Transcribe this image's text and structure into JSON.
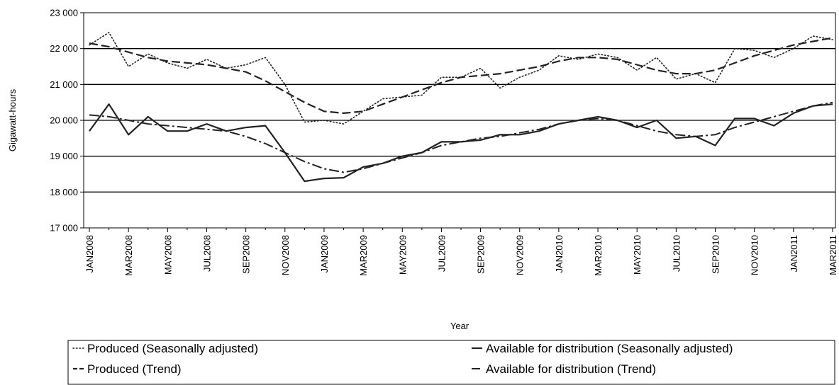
{
  "chart_data": {
    "type": "line",
    "xlabel": "Year",
    "ylabel": "Gigawatt-hours",
    "ylim": [
      17000,
      23000
    ],
    "y_ticks": [
      17000,
      18000,
      19000,
      20000,
      21000,
      22000,
      23000
    ],
    "y_tick_labels": [
      "17 000",
      "18 000",
      "19 000",
      "20 000",
      "21 000",
      "22 000",
      "23 000"
    ],
    "grid": "horizontal",
    "legend_position": "bottom",
    "x": [
      "JAN2008",
      "FEB2008",
      "MAR2008",
      "APR2008",
      "MAY2008",
      "JUN2008",
      "JUL2008",
      "AUG2008",
      "SEP2008",
      "OCT2008",
      "NOV2008",
      "DEC2008",
      "JAN2009",
      "FEB2009",
      "MAR2009",
      "APR2009",
      "MAY2009",
      "JUN2009",
      "JUL2009",
      "AUG2009",
      "SEP2009",
      "OCT2009",
      "NOV2009",
      "DEC2009",
      "JAN2010",
      "FEB2010",
      "MAR2010",
      "APR2010",
      "MAY2010",
      "JUN2010",
      "JUL2010",
      "AUG2010",
      "SEP2010",
      "OCT2010",
      "NOV2010",
      "DEC2010",
      "JAN2011",
      "FEB2011",
      "MAR2011"
    ],
    "x_tick_labels": [
      "JAN2008",
      "MAR2008",
      "MAY2008",
      "JUL2008",
      "SEP2008",
      "NOV2008",
      "JAN2009",
      "MAR2009",
      "MAY2009",
      "JUL2009",
      "SEP2009",
      "NOV2009",
      "JAN2010",
      "MAR2010",
      "MAY2010",
      "JUL2010",
      "SEP2010",
      "NOV2010",
      "JAN2011",
      "MAR2011"
    ],
    "series": [
      {
        "name": "Produced (Seasonally adjusted)",
        "style": "dotted",
        "values": [
          22100,
          22450,
          21500,
          21850,
          21600,
          21450,
          21700,
          21450,
          21550,
          21750,
          21000,
          19950,
          20000,
          19900,
          20250,
          20600,
          20650,
          20700,
          21200,
          21200,
          21450,
          20900,
          21200,
          21400,
          21800,
          21700,
          21850,
          21750,
          21400,
          21750,
          21150,
          21300,
          21050,
          22000,
          21950,
          21750,
          22000,
          22350,
          22250
        ]
      },
      {
        "name": "Produced (Trend)",
        "style": "dashed",
        "values": [
          22150,
          22050,
          21900,
          21750,
          21650,
          21600,
          21550,
          21450,
          21350,
          21100,
          20800,
          20500,
          20250,
          20200,
          20250,
          20450,
          20650,
          20850,
          21050,
          21200,
          21250,
          21300,
          21400,
          21500,
          21650,
          21750,
          21750,
          21700,
          21550,
          21400,
          21300,
          21300,
          21400,
          21600,
          21800,
          21950,
          22100,
          22200,
          22300
        ]
      },
      {
        "name": "Available for distribution (Seasonally adjusted)",
        "style": "solid",
        "values": [
          19700,
          20450,
          19600,
          20100,
          19700,
          19700,
          19900,
          19700,
          19800,
          19850,
          19100,
          18300,
          18380,
          18400,
          18700,
          18800,
          19000,
          19100,
          19400,
          19400,
          19450,
          19600,
          19600,
          19700,
          19900,
          20000,
          20100,
          20000,
          19800,
          20000,
          19500,
          19550,
          19300,
          20050,
          20050,
          19850,
          20200,
          20400,
          20450
        ]
      },
      {
        "name": "Available for distribution (Trend)",
        "style": "dashdot",
        "values": [
          20150,
          20100,
          20000,
          19900,
          19850,
          19800,
          19750,
          19700,
          19550,
          19350,
          19100,
          18850,
          18650,
          18550,
          18650,
          18800,
          18950,
          19100,
          19300,
          19400,
          19500,
          19550,
          19650,
          19750,
          19900,
          20000,
          20050,
          20000,
          19850,
          19700,
          19600,
          19550,
          19600,
          19800,
          19950,
          20100,
          20250,
          20400,
          20500
        ]
      }
    ]
  }
}
